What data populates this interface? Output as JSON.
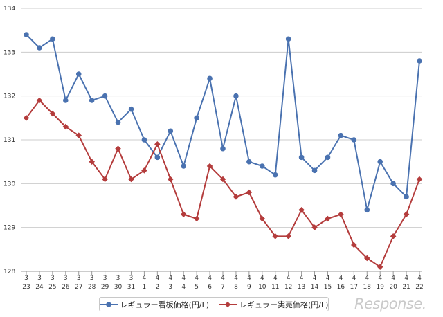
{
  "chart_data": {
    "type": "line",
    "categories": [
      {
        "month": "3",
        "day": "23"
      },
      {
        "month": "3",
        "day": "24"
      },
      {
        "month": "3",
        "day": "25"
      },
      {
        "month": "3",
        "day": "26"
      },
      {
        "month": "3",
        "day": "27"
      },
      {
        "month": "3",
        "day": "28"
      },
      {
        "month": "3",
        "day": "29"
      },
      {
        "month": "3",
        "day": "30"
      },
      {
        "month": "3",
        "day": "31"
      },
      {
        "month": "4",
        "day": "1"
      },
      {
        "month": "4",
        "day": "2"
      },
      {
        "month": "4",
        "day": "3"
      },
      {
        "month": "4",
        "day": "4"
      },
      {
        "month": "4",
        "day": "5"
      },
      {
        "month": "4",
        "day": "6"
      },
      {
        "month": "4",
        "day": "7"
      },
      {
        "month": "4",
        "day": "8"
      },
      {
        "month": "4",
        "day": "9"
      },
      {
        "month": "4",
        "day": "10"
      },
      {
        "month": "4",
        "day": "11"
      },
      {
        "month": "4",
        "day": "12"
      },
      {
        "month": "4",
        "day": "13"
      },
      {
        "month": "4",
        "day": "14"
      },
      {
        "month": "4",
        "day": "15"
      },
      {
        "month": "4",
        "day": "16"
      },
      {
        "month": "4",
        "day": "17"
      },
      {
        "month": "4",
        "day": "18"
      },
      {
        "month": "4",
        "day": "19"
      },
      {
        "month": "4",
        "day": "20"
      },
      {
        "month": "4",
        "day": "21"
      },
      {
        "month": "4",
        "day": "22"
      }
    ],
    "series": [
      {
        "name": "レギュラー看板価格(円/L)",
        "color": "#4a72b0",
        "marker": "circle",
        "values": [
          133.4,
          133.1,
          133.3,
          131.9,
          132.5,
          131.9,
          132.0,
          131.4,
          131.7,
          131.0,
          130.6,
          131.2,
          130.4,
          131.5,
          132.4,
          130.8,
          132.0,
          130.5,
          130.4,
          130.2,
          133.3,
          130.6,
          130.3,
          130.6,
          131.1,
          131.0,
          129.4,
          130.5,
          130.0,
          129.7,
          132.8
        ]
      },
      {
        "name": "レギュラー実売価格(円/L)",
        "color": "#b43c3c",
        "marker": "diamond",
        "values": [
          131.5,
          131.9,
          131.6,
          131.3,
          131.1,
          130.5,
          130.1,
          130.8,
          130.1,
          130.3,
          130.9,
          130.1,
          129.3,
          129.2,
          130.4,
          130.1,
          129.7,
          129.8,
          129.2,
          128.8,
          128.8,
          129.4,
          129.0,
          129.2,
          129.3,
          128.6,
          128.3,
          128.1,
          128.8,
          129.3,
          130.1
        ]
      }
    ],
    "yticks": [
      128,
      129,
      130,
      131,
      132,
      133,
      134
    ],
    "ylim": [
      128,
      134
    ],
    "title": "",
    "xlabel": "",
    "ylabel": "",
    "legend_position": "bottom"
  },
  "watermark": "Response."
}
